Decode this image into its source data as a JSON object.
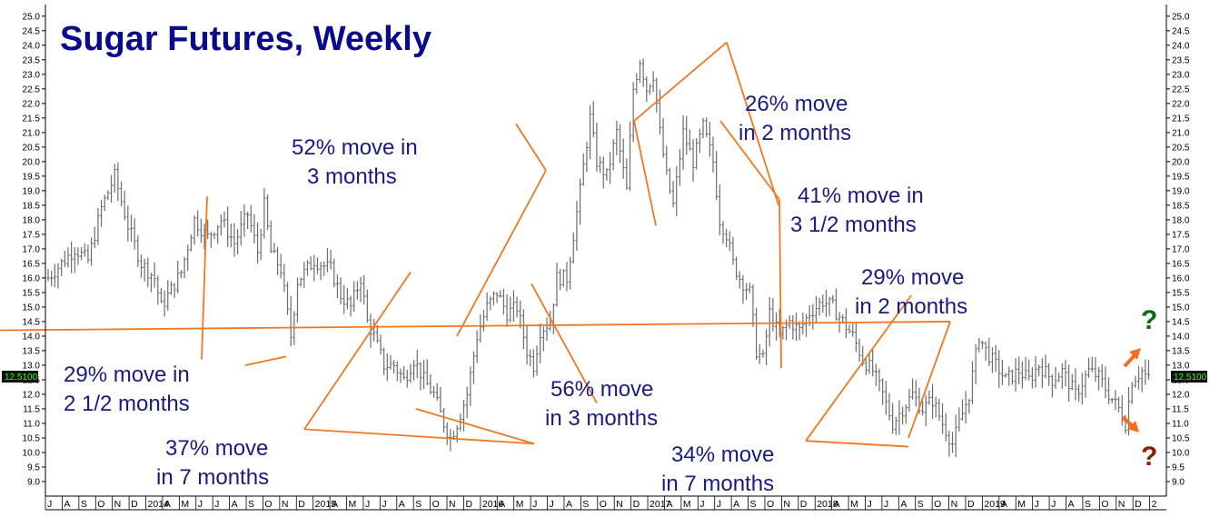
{
  "chart_data": {
    "type": "bar",
    "title": "Sugar Futures, Weekly",
    "ylim": [
      8.5,
      25.4
    ],
    "y_ticks": [
      9.0,
      9.5,
      10.0,
      10.5,
      11.0,
      11.5,
      12.0,
      12.5,
      13.0,
      13.5,
      14.0,
      14.5,
      15.0,
      15.5,
      16.0,
      16.5,
      17.0,
      17.5,
      18.0,
      18.5,
      19.0,
      19.5,
      20.0,
      20.5,
      21.0,
      21.5,
      22.0,
      22.5,
      23.0,
      23.5,
      24.0,
      24.5,
      25.0
    ],
    "last_price": "12.5100",
    "x_ticks": [
      "J",
      "A",
      "S",
      "O",
      "N",
      "D",
      "2014",
      "A",
      "M",
      "J",
      "J",
      "A",
      "S",
      "O",
      "N",
      "D",
      "2015",
      "A",
      "M",
      "J",
      "J",
      "A",
      "S",
      "O",
      "N",
      "D",
      "2016",
      "A",
      "M",
      "J",
      "J",
      "A",
      "S",
      "O",
      "N",
      "D",
      "2017",
      "A",
      "M",
      "J",
      "J",
      "A",
      "S",
      "O",
      "N",
      "D",
      "2018",
      "A",
      "M",
      "J",
      "J",
      "A",
      "S",
      "O",
      "N",
      "D",
      "2019",
      "A",
      "M",
      "J",
      "J",
      "A",
      "S",
      "O",
      "N",
      "D",
      "2"
    ],
    "anchors": [
      [
        0,
        16.0
      ],
      [
        4,
        16.5
      ],
      [
        8,
        17.0
      ],
      [
        12,
        16.6
      ],
      [
        16,
        18.4
      ],
      [
        20,
        19.5
      ],
      [
        24,
        17.8
      ],
      [
        28,
        16.5
      ],
      [
        32,
        16.0
      ],
      [
        34,
        15.0
      ],
      [
        37,
        15.6
      ],
      [
        40,
        16.2
      ],
      [
        44,
        18.0
      ],
      [
        48,
        17.4
      ],
      [
        52,
        18.0
      ],
      [
        56,
        17.2
      ],
      [
        60,
        18.2
      ],
      [
        63,
        16.9
      ],
      [
        65,
        18.5
      ],
      [
        67,
        16.9
      ],
      [
        70,
        16.3
      ],
      [
        73,
        14.0
      ],
      [
        75,
        15.9
      ],
      [
        80,
        16.6
      ],
      [
        85,
        16.3
      ],
      [
        88,
        15.4
      ],
      [
        91,
        15.0
      ],
      [
        94,
        16.0
      ],
      [
        96,
        14.5
      ],
      [
        98,
        14.0
      ],
      [
        101,
        13.0
      ],
      [
        104,
        13.0
      ],
      [
        107,
        12.5
      ],
      [
        110,
        13.2
      ],
      [
        113,
        12.5
      ],
      [
        116,
        12.0
      ],
      [
        119,
        11.0
      ],
      [
        121,
        10.5
      ],
      [
        123,
        11.0
      ],
      [
        126,
        12.0
      ],
      [
        129,
        14.0
      ],
      [
        132,
        15.0
      ],
      [
        135,
        15.5
      ],
      [
        138,
        14.8
      ],
      [
        141,
        15.0
      ],
      [
        144,
        13.5
      ],
      [
        146,
        13.0
      ],
      [
        148,
        14.2
      ],
      [
        151,
        14.5
      ],
      [
        153,
        16.0
      ],
      [
        156,
        16.0
      ],
      [
        160,
        19.0
      ],
      [
        163,
        21.5
      ],
      [
        165,
        20.0
      ],
      [
        168,
        19.5
      ],
      [
        171,
        21.0
      ],
      [
        174,
        19.0
      ],
      [
        176,
        22.5
      ],
      [
        178,
        23.5
      ],
      [
        180,
        22.5
      ],
      [
        182,
        23.0
      ],
      [
        184,
        21.0
      ],
      [
        186,
        19.5
      ],
      [
        188,
        18.5
      ],
      [
        191,
        21.0
      ],
      [
        194,
        20.0
      ],
      [
        197,
        21.2
      ],
      [
        200,
        20.0
      ],
      [
        202,
        18.0
      ],
      [
        204,
        17.5
      ],
      [
        206,
        16.5
      ],
      [
        208,
        16.0
      ],
      [
        211,
        15.5
      ],
      [
        213,
        13.5
      ],
      [
        215,
        13.2
      ],
      [
        217,
        14.8
      ],
      [
        220,
        14.0
      ],
      [
        223,
        14.5
      ],
      [
        226,
        14.2
      ],
      [
        229,
        14.8
      ],
      [
        233,
        15.2
      ],
      [
        236,
        15.0
      ],
      [
        239,
        14.5
      ],
      [
        242,
        14.0
      ],
      [
        245,
        13.2
      ],
      [
        248,
        12.8
      ],
      [
        251,
        12.0
      ],
      [
        254,
        11.0
      ],
      [
        257,
        11.5
      ],
      [
        260,
        12.0
      ],
      [
        263,
        11.5
      ],
      [
        266,
        11.8
      ],
      [
        269,
        11.0
      ],
      [
        272,
        10.3
      ],
      [
        274,
        11.0
      ],
      [
        277,
        12.0
      ],
      [
        280,
        14.0
      ],
      [
        282,
        13.5
      ],
      [
        285,
        13.0
      ],
      [
        288,
        12.5
      ],
      [
        292,
        12.8
      ],
      [
        295,
        12.5
      ],
      [
        298,
        13.0
      ],
      [
        302,
        12.5
      ],
      [
        305,
        12.8
      ],
      [
        309,
        12.0
      ],
      [
        313,
        12.8
      ],
      [
        316,
        12.6
      ],
      [
        319,
        12.0
      ],
      [
        322,
        11.5
      ],
      [
        324,
        11.0
      ],
      [
        326,
        12.5
      ],
      [
        329,
        12.8
      ],
      [
        331,
        12.5
      ]
    ],
    "annotations": [
      {
        "lines": [
          "29% move in",
          "2 1/2 months"
        ]
      },
      {
        "lines": [
          "37% move",
          "in 7 months"
        ]
      },
      {
        "lines": [
          "52% move in",
          "3 months"
        ]
      },
      {
        "lines": [
          "56% move",
          "in 3 months"
        ]
      },
      {
        "lines": [
          "26% move",
          "in 2 months"
        ]
      },
      {
        "lines": [
          "41% move in",
          "3 1/2  months"
        ]
      },
      {
        "lines": [
          "29% move",
          "in 2 months"
        ]
      },
      {
        "lines": [
          "34% move",
          "in 7 months"
        ]
      }
    ],
    "trend_lines": [
      [
        [
          0,
          13.2
        ],
        [
          1,
          18.8
        ]
      ],
      [
        [
          2,
          13.0
        ],
        [
          3,
          13.3
        ]
      ],
      [
        [
          4,
          10.8
        ],
        [
          5,
          16.2
        ]
      ],
      [
        [
          4,
          10.8
        ],
        [
          6,
          10.3
        ]
      ],
      [
        [
          6,
          10.3
        ],
        [
          7,
          11.5
        ]
      ],
      [
        [
          8,
          19.7
        ],
        [
          9,
          21.3
        ]
      ],
      [
        [
          8,
          19.7
        ],
        [
          10,
          14.0
        ]
      ],
      [
        [
          11,
          15.8
        ],
        [
          12,
          11.7
        ]
      ],
      [
        [
          13,
          24.1
        ],
        [
          14,
          21.4
        ]
      ],
      [
        [
          13,
          24.1
        ],
        [
          15,
          18.5
        ]
      ],
      [
        [
          16,
          17.8
        ],
        [
          14,
          21.4
        ]
      ],
      [
        [
          17,
          21.4
        ],
        [
          18,
          18.7
        ]
      ],
      [
        [
          18,
          18.7
        ],
        [
          19,
          12.9
        ]
      ],
      [
        [
          20,
          10.4
        ],
        [
          21,
          15.4
        ]
      ],
      [
        [
          20,
          10.4
        ],
        [
          22,
          10.2
        ]
      ],
      [
        [
          22,
          10.5
        ],
        [
          23,
          14.5
        ]
      ],
      [
        [
          23,
          14.5
        ],
        [
          24,
          14.2
        ]
      ]
    ],
    "projection": {
      "up_label": "?",
      "down_label": "?",
      "up_color": "#0c6b12",
      "down_color": "#8b2200",
      "arrow_color": "#f07020"
    },
    "bar_color": "#6d6d6d",
    "line_color": "#f07820",
    "grid": false
  }
}
